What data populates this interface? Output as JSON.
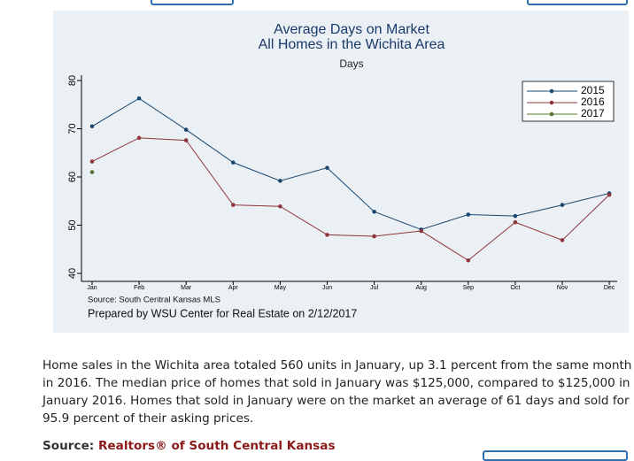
{
  "chart_data": {
    "type": "line",
    "title": "Average Days on Market",
    "subtitle": "All Homes in the Wichita Area",
    "y_label": "Days",
    "categories": [
      "Jan",
      "Feb",
      "Mar",
      "Apr",
      "May",
      "Jun",
      "Jul",
      "Aug",
      "Sep",
      "Oct",
      "Nov",
      "Dec"
    ],
    "series": [
      {
        "name": "2015",
        "color": "#1a476f",
        "values": [
          70.5,
          76.3,
          69.8,
          63,
          59.2,
          61.9,
          52.8,
          49.1,
          52.2,
          51.9,
          54.2,
          56.6
        ]
      },
      {
        "name": "2016",
        "color": "#90353b",
        "values": [
          63.2,
          68.1,
          67.6,
          54.2,
          53.9,
          48,
          47.7,
          48.8,
          42.7,
          50.6,
          46.9,
          56.3
        ]
      },
      {
        "name": "2017",
        "color": "#55752f",
        "values": [
          61,
          null,
          null,
          null,
          null,
          null,
          null,
          null,
          null,
          null,
          null,
          null
        ]
      }
    ],
    "ylim": [
      40,
      80
    ],
    "yticks": [
      40,
      50,
      60,
      70,
      80
    ],
    "legend": "top-right",
    "notes": [
      "Source: South Central Kansas MLS",
      "Prepared by WSU Center for Real Estate on 2/12/2017"
    ]
  },
  "article": {
    "paragraph": "Home sales in the Wichita area totaled 560 units in January, up 3.1 percent from the same month in 2016. The median price of homes that sold in January was $125,000, compared to $125,000 in January 2016. Homes that sold in January were on the market an average of 61 days and sold for 95.9 percent of their asking prices.",
    "source_label": "Source:",
    "source_link": "Realtors® of South Central Kansas"
  }
}
